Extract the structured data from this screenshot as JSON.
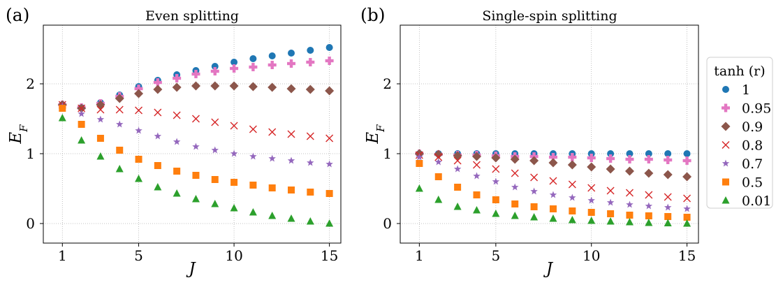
{
  "panel_labels": [
    "(a)",
    "(b)"
  ],
  "legend": {
    "title": "tanh (r)",
    "placement": "right, outside panels",
    "entries": [
      "1",
      "0.95",
      "0.9",
      "0.8",
      "0.7",
      "0.5",
      "0.01"
    ]
  },
  "series_style": [
    {
      "color": "#1f77b4",
      "marker": "circle"
    },
    {
      "color": "#e377c2",
      "marker": "plus"
    },
    {
      "color": "#8c564b",
      "marker": "diamond"
    },
    {
      "color": "#d62728",
      "marker": "x"
    },
    {
      "color": "#9467bd",
      "marker": "star"
    },
    {
      "color": "#ff7f0e",
      "marker": "square"
    },
    {
      "color": "#2ca02c",
      "marker": "triangle"
    }
  ],
  "chart_data": [
    {
      "type": "scatter",
      "title": "Even splitting",
      "xlabel": "J",
      "ylabel": "E_F",
      "xlim": [
        0,
        15.6
      ],
      "ylim": [
        -0.28,
        2.84
      ],
      "xticks": [
        1,
        5,
        10,
        15
      ],
      "yticks": [
        0,
        1,
        2
      ],
      "grid": true,
      "x": [
        1,
        2,
        3,
        4,
        5,
        6,
        7,
        8,
        9,
        10,
        11,
        12,
        13,
        14,
        15
      ],
      "series": [
        {
          "name": "1",
          "values": [
            1.7,
            1.66,
            1.73,
            1.84,
            1.96,
            2.05,
            2.13,
            2.19,
            2.25,
            2.31,
            2.36,
            2.4,
            2.44,
            2.48,
            2.52
          ]
        },
        {
          "name": "0.95",
          "values": [
            1.7,
            1.66,
            1.72,
            1.82,
            1.93,
            2.02,
            2.08,
            2.14,
            2.18,
            2.22,
            2.24,
            2.27,
            2.29,
            2.31,
            2.33
          ]
        },
        {
          "name": "0.9",
          "values": [
            1.7,
            1.65,
            1.7,
            1.79,
            1.86,
            1.92,
            1.95,
            1.97,
            1.97,
            1.97,
            1.96,
            1.95,
            1.93,
            1.92,
            1.9
          ]
        },
        {
          "name": "0.8",
          "values": [
            1.7,
            1.65,
            1.63,
            1.63,
            1.62,
            1.59,
            1.55,
            1.5,
            1.45,
            1.4,
            1.35,
            1.31,
            1.28,
            1.25,
            1.22
          ]
        },
        {
          "name": "0.7",
          "values": [
            1.68,
            1.57,
            1.49,
            1.42,
            1.33,
            1.25,
            1.17,
            1.1,
            1.05,
            1.0,
            0.96,
            0.93,
            0.9,
            0.87,
            0.85
          ]
        },
        {
          "name": "0.5",
          "values": [
            1.65,
            1.42,
            1.22,
            1.05,
            0.92,
            0.83,
            0.75,
            0.69,
            0.63,
            0.59,
            0.55,
            0.51,
            0.48,
            0.45,
            0.43
          ]
        },
        {
          "name": "0.01",
          "values": [
            1.51,
            1.19,
            0.96,
            0.78,
            0.64,
            0.52,
            0.43,
            0.35,
            0.28,
            0.22,
            0.16,
            0.11,
            0.07,
            0.03,
            0.0
          ]
        }
      ]
    },
    {
      "type": "scatter",
      "title": "Single-spin splitting",
      "xlabel": "J",
      "ylabel": "E_F",
      "xlim": [
        0,
        15.6
      ],
      "ylim": [
        -0.28,
        2.84
      ],
      "xticks": [
        1,
        5,
        10,
        15
      ],
      "yticks": [
        0,
        1,
        2
      ],
      "grid": true,
      "x": [
        1,
        2,
        3,
        4,
        5,
        6,
        7,
        8,
        9,
        10,
        11,
        12,
        13,
        14,
        15
      ],
      "series": [
        {
          "name": "1",
          "values": [
            1.0,
            1.0,
            1.0,
            1.0,
            1.0,
            1.0,
            1.0,
            1.0,
            1.0,
            1.0,
            1.0,
            1.0,
            1.0,
            1.0,
            1.0
          ]
        },
        {
          "name": "0.95",
          "values": [
            1.0,
            0.99,
            0.98,
            0.98,
            0.97,
            0.96,
            0.96,
            0.95,
            0.95,
            0.94,
            0.93,
            0.92,
            0.92,
            0.91,
            0.9
          ]
        },
        {
          "name": "0.9",
          "values": [
            1.0,
            0.99,
            0.97,
            0.96,
            0.94,
            0.92,
            0.9,
            0.87,
            0.84,
            0.81,
            0.78,
            0.75,
            0.72,
            0.7,
            0.67
          ]
        },
        {
          "name": "0.8",
          "values": [
            0.98,
            0.95,
            0.9,
            0.84,
            0.78,
            0.72,
            0.66,
            0.61,
            0.56,
            0.51,
            0.47,
            0.44,
            0.41,
            0.38,
            0.36
          ]
        },
        {
          "name": "0.7",
          "values": [
            0.95,
            0.88,
            0.78,
            0.68,
            0.6,
            0.52,
            0.46,
            0.41,
            0.37,
            0.33,
            0.3,
            0.27,
            0.25,
            0.23,
            0.21
          ]
        },
        {
          "name": "0.5",
          "values": [
            0.86,
            0.67,
            0.52,
            0.41,
            0.34,
            0.28,
            0.24,
            0.21,
            0.18,
            0.16,
            0.14,
            0.12,
            0.11,
            0.1,
            0.09
          ]
        },
        {
          "name": "0.01",
          "values": [
            0.5,
            0.34,
            0.24,
            0.19,
            0.14,
            0.11,
            0.09,
            0.07,
            0.05,
            0.04,
            0.03,
            0.02,
            0.01,
            0.005,
            0.0
          ]
        }
      ]
    }
  ]
}
